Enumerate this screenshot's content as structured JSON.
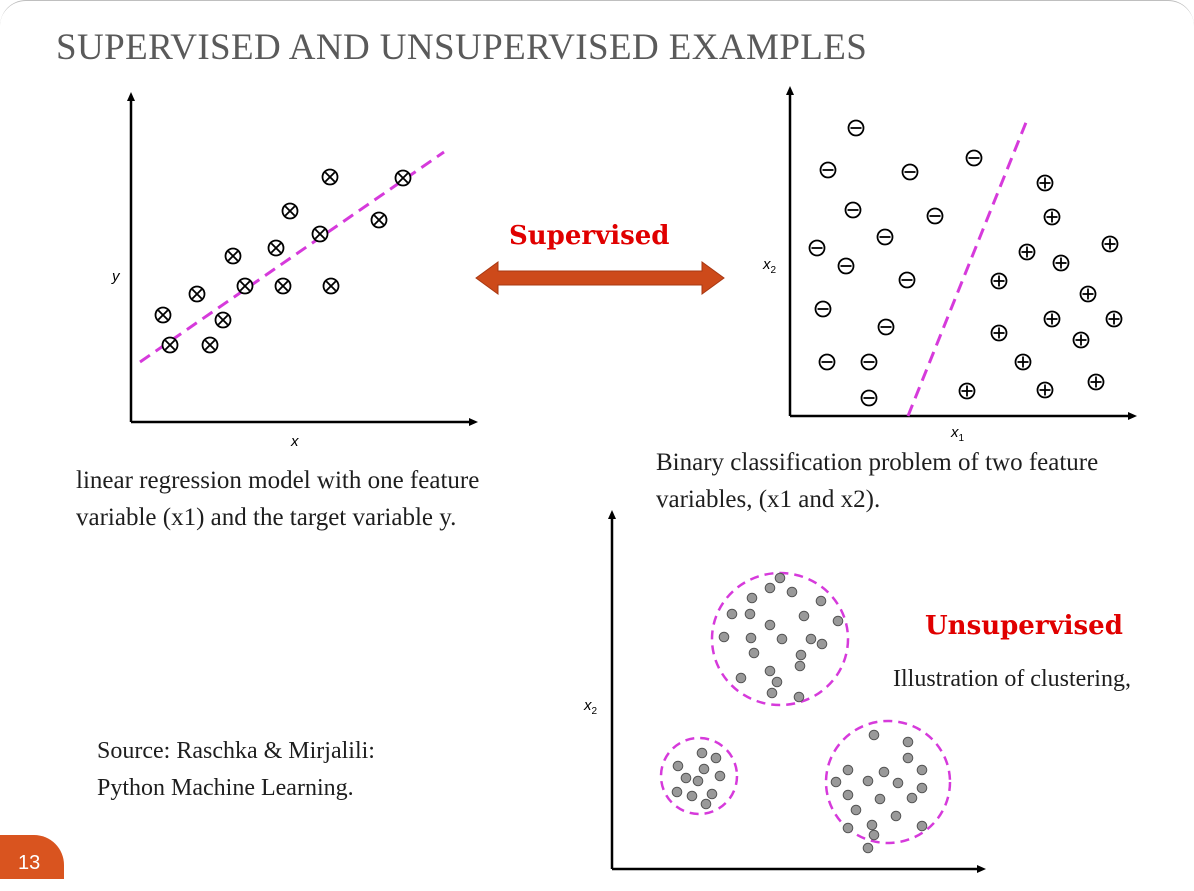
{
  "slide": {
    "title": "SUPERVISED AND UNSUPERVISED EXAMPLES",
    "page_number": "13"
  },
  "supervised": {
    "label": "Supervised",
    "arrow_color": "#cd4a1a",
    "label_color": "#e00000"
  },
  "regression": {
    "x_label": "x",
    "y_label": "y",
    "caption_line1": "linear regression model with one feature",
    "caption_line2": "variable (x1) and the target variable y.",
    "marker": "circled-cross",
    "fit_line_color": "#d63adb"
  },
  "classification": {
    "x_label": "x",
    "x_sub": "1",
    "y_label": "x",
    "y_sub": "2",
    "caption_line1": "Binary classification problem of two feature",
    "caption_line2": "variables, (x1 and x2).",
    "negative_marker": "circled-minus",
    "positive_marker": "circled-plus",
    "boundary_color": "#d63adb"
  },
  "clustering": {
    "label": "Unsupervised",
    "description": "Illustration of clustering,",
    "y_label": "x",
    "y_sub": "2",
    "cluster_outline_color": "#d63adb",
    "point_color": "#999999",
    "cluster_count": 3
  },
  "source": {
    "line1": "Source: Raschka & Mirjalili:",
    "line2": "Python Machine Learning."
  }
}
